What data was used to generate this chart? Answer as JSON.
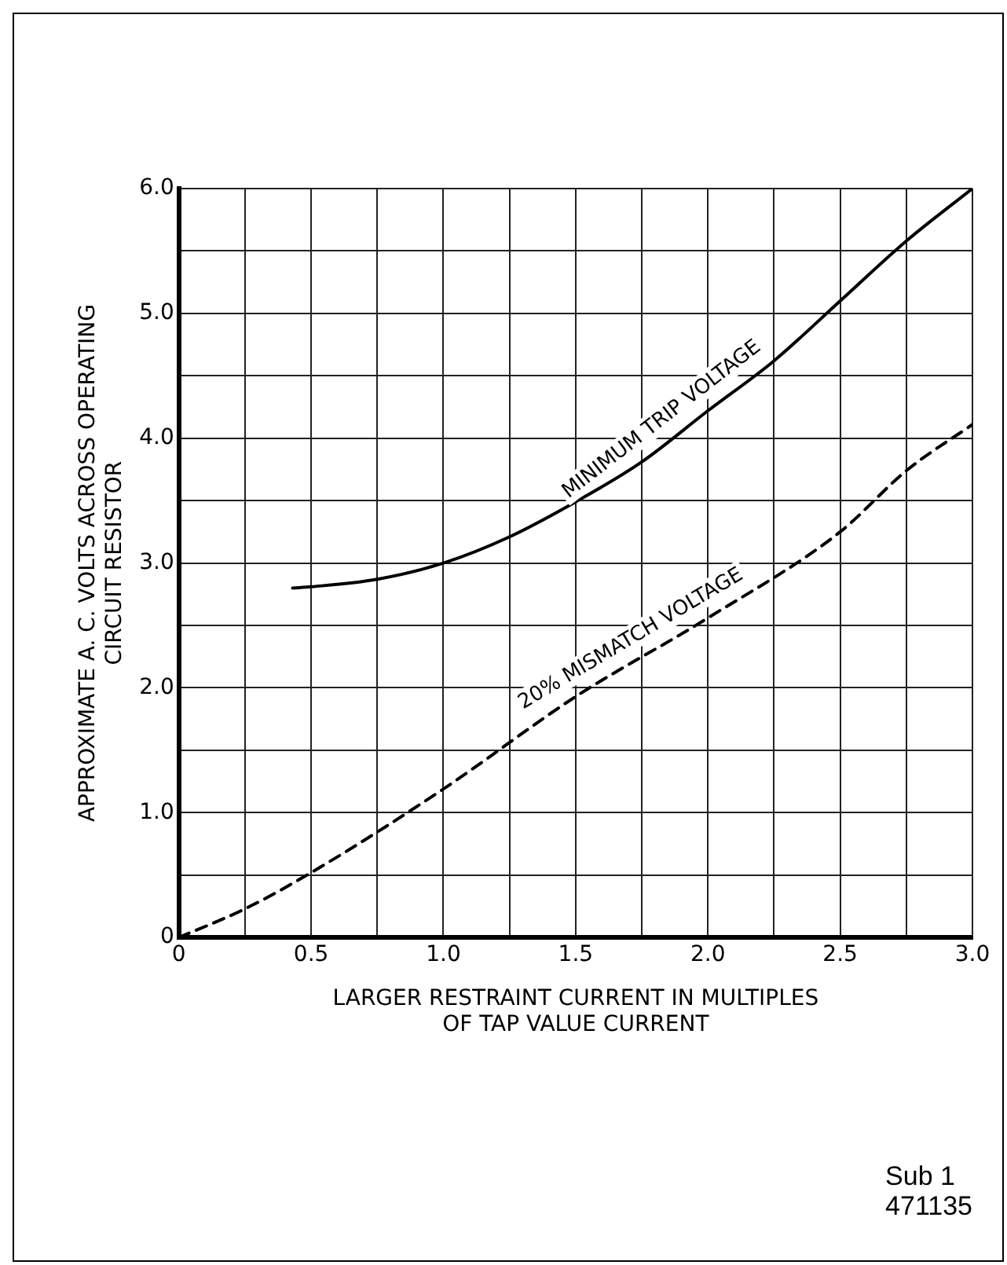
{
  "chart_data": {
    "type": "line",
    "xlabel": "LARGER RESTRAINT CURRENT IN MULTIPLES\nOF TAP VALUE CURRENT",
    "ylabel": "APPROXIMATE A. C. VOLTS ACROSS OPERATING\nCIRCUIT RESISTOR",
    "annotations": [
      "Sub 1\n471135"
    ],
    "xlim": [
      0,
      3
    ],
    "xticks": [
      0,
      {
        "value": 0.25,
        "label": null
      },
      0.5,
      {
        "value": 0.75,
        "label": null
      },
      {
        "value": 1,
        "label": "1.0"
      },
      {
        "value": 1.25,
        "label": null
      },
      1.5,
      {
        "value": 1.75,
        "label": null
      },
      {
        "value": 2,
        "label": "2.0"
      },
      {
        "value": 2.25,
        "label": null
      },
      2.5,
      {
        "value": 2.75,
        "label": null
      },
      {
        "value": 3,
        "label": "3.0"
      }
    ],
    "ylim": [
      0,
      6
    ],
    "yticks": [
      0,
      {
        "value": 0.5,
        "label": null
      },
      {
        "value": 1,
        "label": "1.0"
      },
      {
        "value": 1.5,
        "label": null
      },
      {
        "value": 2,
        "label": "2.0"
      },
      {
        "value": 2.5,
        "label": null
      },
      {
        "value": 3,
        "label": "3.0"
      },
      {
        "value": 3.5,
        "label": null
      },
      {
        "value": 4,
        "label": "4.0"
      },
      {
        "value": 4.5,
        "label": null
      },
      {
        "value": 5,
        "label": "5.0"
      },
      {
        "value": 5.5,
        "label": null
      },
      {
        "value": 6,
        "label": "6.0"
      }
    ],
    "grid": true,
    "legend": false,
    "marker": "none",
    "series": [
      {
        "name": "MINIMUM TRIP VOLTAGE",
        "color": "#000000",
        "line_style": "solid",
        "x": [
          0.43,
          0.5,
          0.75,
          1,
          1.25,
          1.5,
          1.75,
          2,
          2.25,
          2.5,
          2.75,
          3
        ],
        "values": [
          2.8,
          2.81,
          2.87,
          3,
          3.21,
          3.49,
          3.81,
          4.22,
          4.62,
          5.1,
          5.58,
          6
        ]
      },
      {
        "name": "20% MISMATCH VOLTAGE",
        "color": "#000000",
        "line_style": "dashed",
        "x": [
          0,
          0.25,
          0.5,
          1,
          1.5,
          2,
          2.5,
          2.75,
          3
        ],
        "values": [
          0,
          0.23,
          0.52,
          1.19,
          1.93,
          2.56,
          3.25,
          3.74,
          4.11
        ]
      }
    ]
  }
}
